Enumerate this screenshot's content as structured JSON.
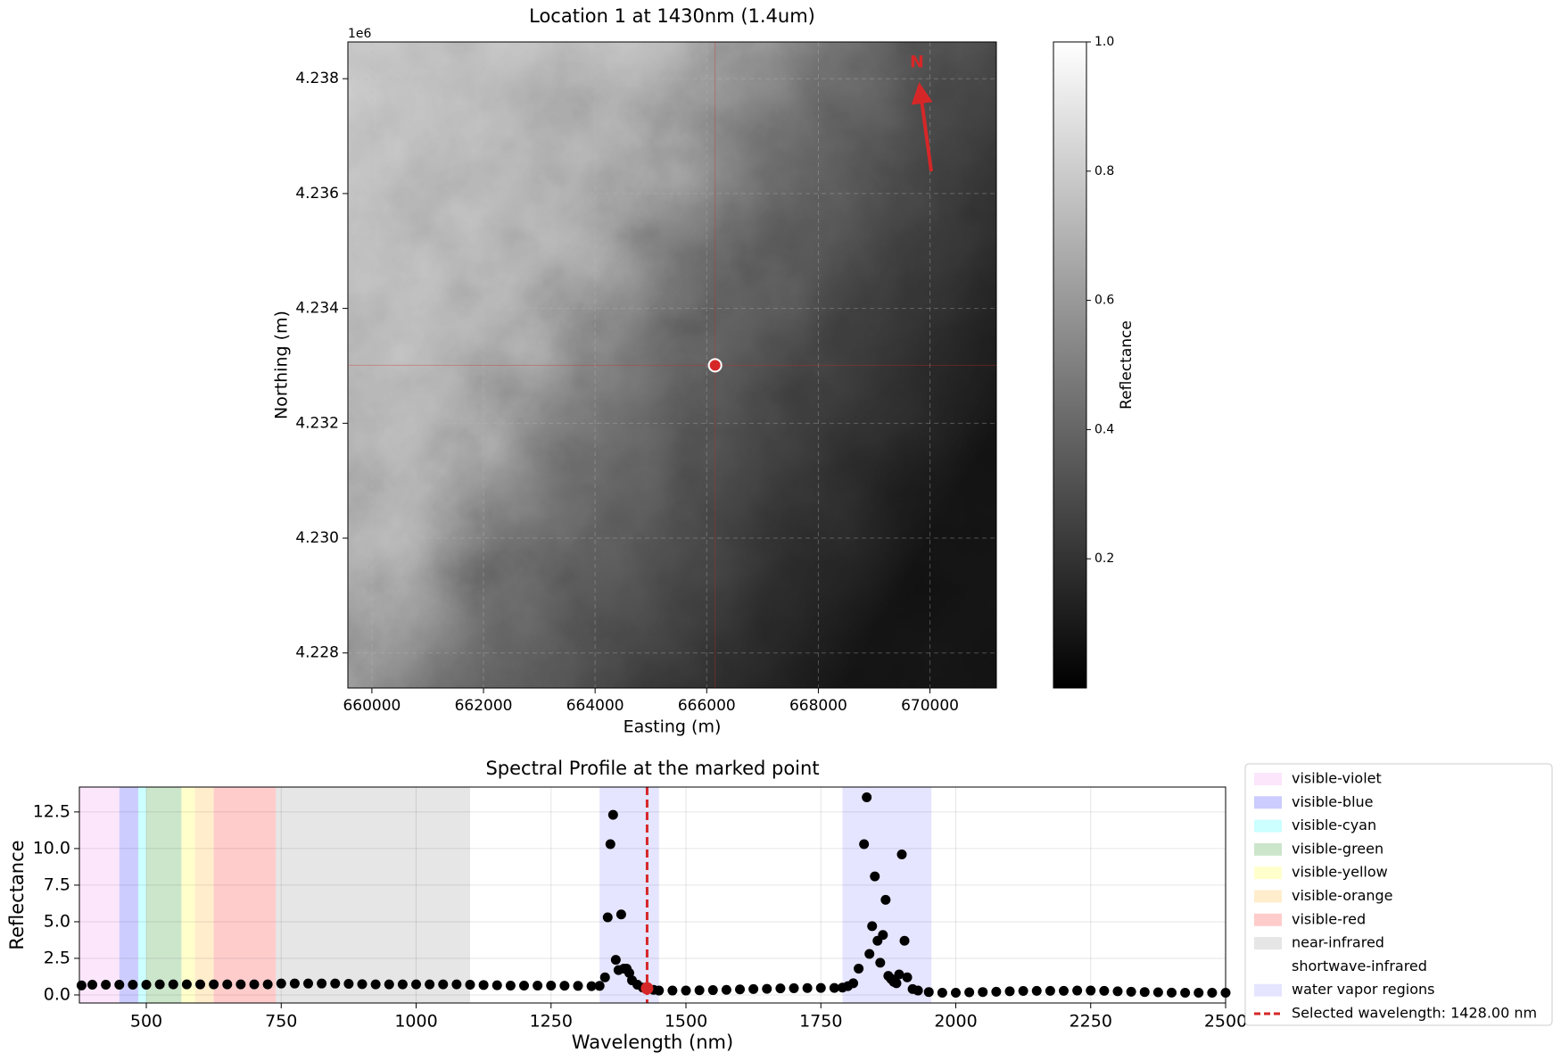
{
  "chart_data": [
    {
      "type": "image",
      "title": "Location 1 at 1430nm (1.4um)",
      "x_label": "Easting (m)",
      "y_label": "Northing (m)",
      "y_offset_label": "1e6",
      "xlim": [
        659570,
        671190
      ],
      "ylim": [
        4227390,
        4238640
      ],
      "xticks": [
        660000,
        662000,
        664000,
        666000,
        668000,
        670000
      ],
      "yticks": [
        {
          "value": 4228000,
          "label": "4.228"
        },
        {
          "value": 4230000,
          "label": "4.230"
        },
        {
          "value": 4232000,
          "label": "4.232"
        },
        {
          "value": 4234000,
          "label": "4.234"
        },
        {
          "value": 4236000,
          "label": "4.236"
        },
        {
          "value": 4238000,
          "label": "4.238"
        }
      ],
      "grid": true,
      "marker": {
        "x": 666150,
        "y": 4233009,
        "color": "#d62728"
      },
      "north_label": "N",
      "colorbar": {
        "label": "Reflectance",
        "lim": [
          0,
          1
        ],
        "ticks": [
          0.2,
          0.4,
          0.6,
          0.8,
          {
            "value": 1,
            "label": "1.0"
          }
        ]
      }
    },
    {
      "type": "scatter",
      "title": "Spectral Profile at the marked point",
      "x_label": "Wavelength (nm)",
      "y_label": "Reflectance",
      "xlim": [
        376,
        2500
      ],
      "ylim": [
        -0.55,
        14.2
      ],
      "xticks": [
        500,
        750,
        1000,
        1250,
        1500,
        1750,
        2000,
        2250,
        2500
      ],
      "yticks": [
        {
          "value": 0,
          "label": "0.0"
        },
        2.5,
        {
          "value": 5,
          "label": "5.0"
        },
        7.5,
        {
          "value": 10,
          "label": "10.0"
        },
        12.5
      ],
      "grid": true,
      "regions": [
        {
          "name": "visible-violet",
          "color": "#ee82ee",
          "opacity": 0.2,
          "ranges": [
            [
              376,
              450
            ]
          ]
        },
        {
          "name": "visible-blue",
          "color": "#0000ff",
          "opacity": 0.2,
          "ranges": [
            [
              450,
              485
            ]
          ]
        },
        {
          "name": "visible-cyan",
          "color": "#00ffff",
          "opacity": 0.2,
          "ranges": [
            [
              485,
              500
            ]
          ]
        },
        {
          "name": "visible-green",
          "color": "#008000",
          "opacity": 0.2,
          "ranges": [
            [
              500,
              565
            ]
          ]
        },
        {
          "name": "visible-yellow",
          "color": "#ffff00",
          "opacity": 0.2,
          "ranges": [
            [
              565,
              590
            ]
          ]
        },
        {
          "name": "visible-orange",
          "color": "#ffa500",
          "opacity": 0.2,
          "ranges": [
            [
              590,
              625
            ]
          ]
        },
        {
          "name": "visible-red",
          "color": "#ff0000",
          "opacity": 0.2,
          "ranges": [
            [
              625,
              740
            ]
          ]
        },
        {
          "name": "near-infrared",
          "color": "#808080",
          "opacity": 0.2,
          "ranges": [
            [
              740,
              1100
            ]
          ]
        },
        {
          "name": "shortwave-infrared",
          "color": "#ffffff",
          "opacity": 0.2,
          "ranges": [
            [
              1100,
              2500
            ]
          ]
        },
        {
          "name": "water vapor regions",
          "color": "#0000ff",
          "opacity": 0.1,
          "ranges": [
            [
              1340,
              1450
            ],
            [
              1790,
              1955
            ]
          ]
        }
      ],
      "series": [
        {
          "color": "#000000",
          "x": [
            380,
            400,
            425,
            450,
            475,
            500,
            525,
            550,
            575,
            600,
            625,
            650,
            675,
            700,
            725,
            750,
            775,
            800,
            825,
            850,
            875,
            900,
            925,
            950,
            975,
            1000,
            1025,
            1050,
            1075,
            1100,
            1125,
            1150,
            1175,
            1200,
            1225,
            1250,
            1275,
            1300,
            1325,
            1340,
            1350,
            1355,
            1360,
            1365,
            1370,
            1375,
            1380,
            1385,
            1390,
            1395,
            1400,
            1410,
            1420,
            1440,
            1450,
            1475,
            1500,
            1525,
            1550,
            1575,
            1600,
            1625,
            1650,
            1675,
            1700,
            1725,
            1750,
            1775,
            1790,
            1800,
            1810,
            1820,
            1830,
            1835,
            1840,
            1845,
            1850,
            1855,
            1860,
            1865,
            1870,
            1875,
            1880,
            1885,
            1890,
            1895,
            1900,
            1905,
            1910,
            1920,
            1930,
            1950,
            1975,
            2000,
            2025,
            2050,
            2075,
            2100,
            2125,
            2150,
            2175,
            2200,
            2225,
            2250,
            2275,
            2300,
            2325,
            2350,
            2375,
            2400,
            2425,
            2450,
            2475,
            2500
          ],
          "values": [
            0.65,
            0.7,
            0.7,
            0.7,
            0.7,
            0.7,
            0.72,
            0.72,
            0.72,
            0.72,
            0.72,
            0.72,
            0.72,
            0.72,
            0.72,
            0.78,
            0.78,
            0.78,
            0.78,
            0.78,
            0.76,
            0.74,
            0.72,
            0.72,
            0.72,
            0.72,
            0.72,
            0.72,
            0.72,
            0.7,
            0.68,
            0.66,
            0.64,
            0.64,
            0.64,
            0.64,
            0.63,
            0.62,
            0.6,
            0.62,
            1.2,
            5.3,
            10.3,
            12.3,
            2.4,
            1.7,
            5.5,
            1.8,
            1.8,
            1.5,
            1.0,
            0.7,
            0.5,
            0.35,
            0.3,
            0.3,
            0.3,
            0.32,
            0.33,
            0.35,
            0.38,
            0.4,
            0.42,
            0.45,
            0.46,
            0.47,
            0.48,
            0.48,
            0.5,
            0.6,
            0.8,
            1.8,
            10.3,
            13.5,
            2.8,
            4.7,
            8.1,
            3.7,
            2.2,
            4.1,
            6.5,
            1.3,
            1.1,
            0.9,
            0.8,
            1.4,
            9.6,
            3.7,
            1.2,
            0.4,
            0.3,
            0.2,
            0.15,
            0.15,
            0.18,
            0.2,
            0.22,
            0.25,
            0.27,
            0.28,
            0.28,
            0.28,
            0.3,
            0.3,
            0.28,
            0.25,
            0.22,
            0.2,
            0.18,
            0.16,
            0.15,
            0.15,
            0.15,
            0.15
          ]
        }
      ],
      "selected": {
        "name": "Selected wavelength: 1428.00 nm",
        "color": "#d62728",
        "x": 1428,
        "value": 0.45
      }
    }
  ]
}
